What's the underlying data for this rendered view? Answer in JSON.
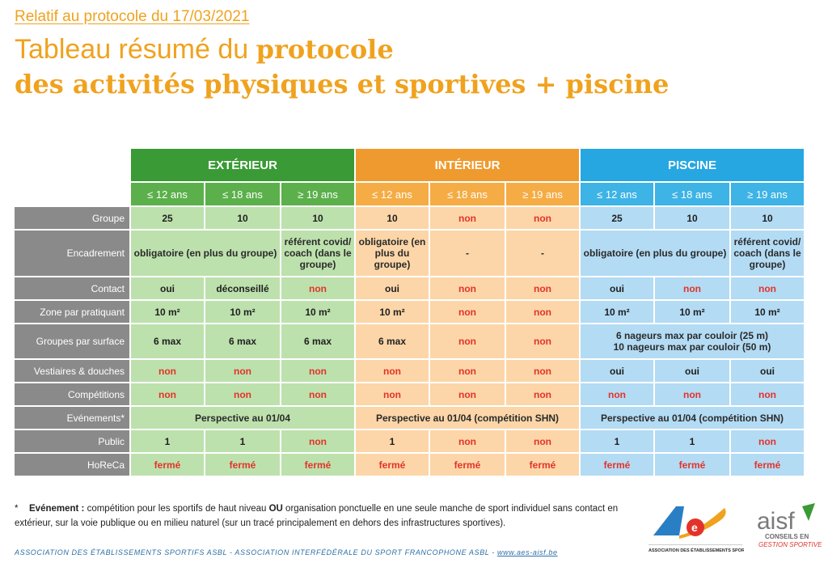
{
  "header": {
    "subtitle": "Relatif au protocole du 17/03/2021",
    "title_light": "Tableau résumé du ",
    "title_bold1": "protocole",
    "title_bold2": "des activités physiques et sportives + piscine"
  },
  "sections": [
    "EXTÉRIEUR",
    "INTÉRIEUR",
    "PISCINE"
  ],
  "ages": [
    "≤ 12 ans",
    "≤ 18 ans",
    "≥ 19 ans"
  ],
  "rows": [
    {
      "label": "Groupe",
      "cells": [
        "25",
        "10",
        "10",
        "10",
        "non",
        "non",
        "25",
        "10",
        "10"
      ]
    },
    {
      "label": "Encadrement",
      "cells": [
        "obligatoire (en plus du groupe)",
        "référent covid/ coach (dans le groupe)",
        "obligatoire (en plus du groupe)",
        "-",
        "-",
        "obligatoire (en plus du groupe)",
        "référent covid/ coach (dans le groupe)"
      ]
    },
    {
      "label": "Contact",
      "cells": [
        "oui",
        "déconseillé",
        "non",
        "oui",
        "non",
        "non",
        "oui",
        "non",
        "non"
      ]
    },
    {
      "label": "Zone par pratiquant",
      "cells": [
        "10 m²",
        "10 m²",
        "10 m²",
        "10 m²",
        "non",
        "non",
        "10 m²",
        "10 m²",
        "10 m²"
      ]
    },
    {
      "label": "Groupes par surface",
      "cells": [
        "6 max",
        "6 max",
        "6 max",
        "6 max",
        "non",
        "non"
      ],
      "piscine_merged": [
        "6 nageurs max par couloir (25 m)",
        "10 nageurs max par couloir (50 m)"
      ]
    },
    {
      "label": "Vestiaires & douches",
      "cells": [
        "non",
        "non",
        "non",
        "non",
        "non",
        "non",
        "oui",
        "oui",
        "oui"
      ]
    },
    {
      "label": "Compétitions",
      "cells": [
        "non",
        "non",
        "non",
        "non",
        "non",
        "non",
        "non",
        "non",
        "non"
      ]
    },
    {
      "label": "Evénements*",
      "cells": [
        "Perspective au 01/04",
        "Perspective au 01/04 (compétition SHN)",
        "Perspective au 01/04 (compétition SHN)"
      ]
    },
    {
      "label": "Public",
      "cells": [
        "1",
        "1",
        "non",
        "1",
        "non",
        "non",
        "1",
        "1",
        "non"
      ]
    },
    {
      "label": "HoReCa",
      "cells": [
        "fermé",
        "fermé",
        "fermé",
        "fermé",
        "fermé",
        "fermé",
        "fermé",
        "fermé",
        "fermé"
      ]
    }
  ],
  "footnote": {
    "star": "*",
    "term": "Evénement :",
    "text1": " compétition pour les sportifs de haut niveau ",
    "ou": "OU",
    "text2": " organisation ponctuelle en une seule manche de sport individuel sans contact en extérieur, sur la voie publique ou en milieu naturel (sur un tracé principalement en dehors des infrastructures sportives)."
  },
  "footer": {
    "text": "ASSOCIATION DES ÉTABLISSEMENTS SPORTIFS ASBL - ASSOCIATION INTERFÉDÉRALE DU SPORT FRANCOPHONE ASBL - ",
    "url": "www.aes-aisf.be"
  },
  "logos": {
    "aes_caption": "ASSOCIATION DES ÉTABLISSEMENTS SPORTIFS",
    "aisf_name": "aisf",
    "aisf_caption1": "CONSEILS EN",
    "aisf_caption2": "GESTION SPORTIVE"
  },
  "colors": {
    "accent": "#f0a21e",
    "exterieur": "#3a9a35",
    "interieur": "#ef9a2e",
    "piscine": "#27a7e1",
    "non_red": "#e2332a",
    "label_grey": "#8a8a8a"
  }
}
